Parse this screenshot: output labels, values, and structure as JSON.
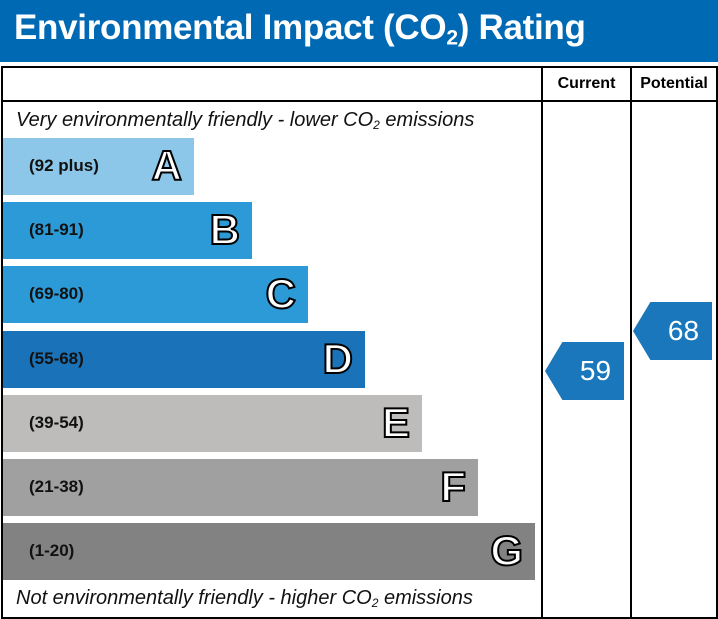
{
  "header": {
    "title_pre": "Environmental Impact (CO",
    "title_sub": "2",
    "title_post": ") Rating"
  },
  "columns": {
    "current": "Current",
    "potential": "Potential"
  },
  "notes": {
    "top_pre": "Very environmentally friendly - lower CO",
    "top_sub": "2",
    "top_post": " emissions",
    "bottom_pre": "Not environmentally friendly - higher CO",
    "bottom_sub": "2",
    "bottom_post": " emissions"
  },
  "chart_data": {
    "type": "bar",
    "bands": [
      {
        "range": "(92 plus)",
        "letter": "A",
        "color": "#8cc6e8"
      },
      {
        "range": "(81-91)",
        "letter": "B",
        "color": "#2b9ad6"
      },
      {
        "range": "(69-80)",
        "letter": "C",
        "color": "#2b9ad6"
      },
      {
        "range": "(55-68)",
        "letter": "D",
        "color": "#1a72b8"
      },
      {
        "range": "(39-54)",
        "letter": "E",
        "color": "#bdbcbb"
      },
      {
        "range": "(21-38)",
        "letter": "F",
        "color": "#a0a0a0"
      },
      {
        "range": "(1-20)",
        "letter": "G",
        "color": "#828282"
      }
    ],
    "current": {
      "value": "59",
      "band": "D",
      "color": "#1a77bb"
    },
    "potential": {
      "value": "68",
      "band": "D",
      "color": "#1a77bb"
    }
  }
}
